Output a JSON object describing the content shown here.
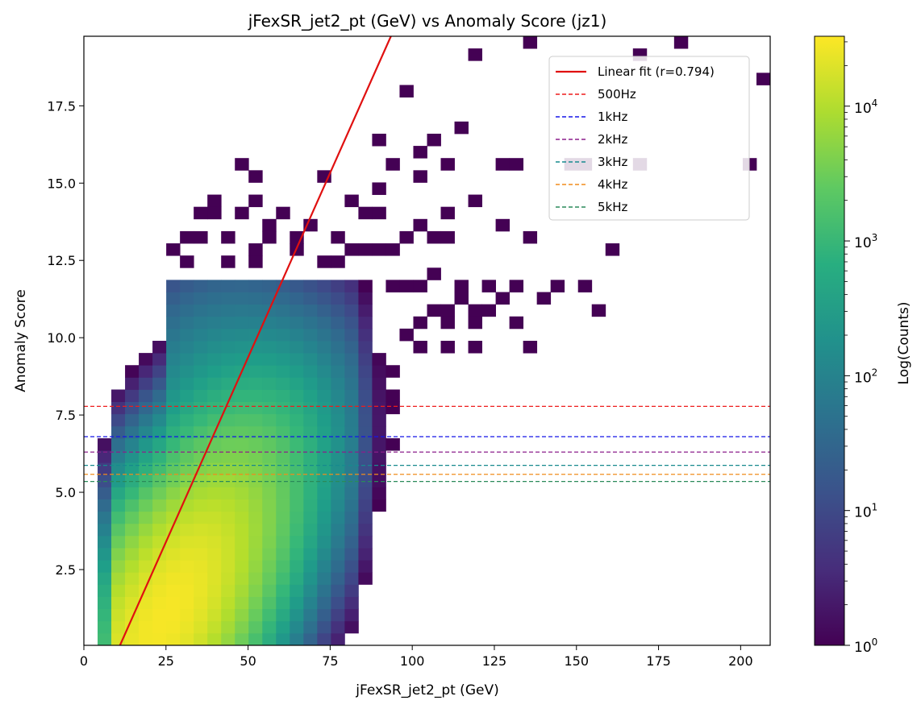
{
  "chart_data": {
    "type": "heatmap",
    "title": "jFexSR_jet2_pt (GeV) vs Anomaly Score (jz1)",
    "xlabel": "jFexSR_jet2_pt (GeV)",
    "ylabel": "Anomaly Score",
    "xlim": [
      0,
      209
    ],
    "ylim": [
      0.05,
      19.75
    ],
    "x_ticks": [
      0,
      25,
      50,
      75,
      100,
      125,
      150,
      175,
      200
    ],
    "x_tick_labels": [
      "0",
      "25",
      "50",
      "75",
      "100",
      "125",
      "150",
      "175",
      "200"
    ],
    "y_ticks": [
      2.5,
      5.0,
      7.5,
      10.0,
      12.5,
      15.0,
      17.5
    ],
    "y_tick_labels": [
      "2.5",
      "5.0",
      "7.5",
      "10.0",
      "12.5",
      "15.0",
      "17.5"
    ],
    "colorbar": {
      "label": "Log(Counts)",
      "scale": "log",
      "colormap": "viridis",
      "min": 1,
      "max": 33000,
      "ticks": [
        1,
        10,
        100,
        1000,
        10000
      ],
      "tick_labels": [
        {
          "base": "10",
          "exp": "0"
        },
        {
          "base": "10",
          "exp": "1"
        },
        {
          "base": "10",
          "exp": "2"
        },
        {
          "base": "10",
          "exp": "3"
        },
        {
          "base": "10",
          "exp": "4"
        }
      ]
    },
    "bins": {
      "x_width": 4.18,
      "y_height": 0.394,
      "model": "smooth reconstruction of the 2D count density plus sparse outlier cells; values are approximate counts read off the color scale"
    },
    "core_density": {
      "peak_counts": 30000,
      "peak_location": {
        "x": 25,
        "y": 1.0
      },
      "ridge": {
        "y_at_x_20": 0.5,
        "slope_per_gev": 0.1
      },
      "spread_y": 2.0,
      "spread_x": 16,
      "extent": "bulk spans x 5-80 GeV and scores 0-11"
    },
    "outlier_cells": [
      [
        136,
        19.5
      ],
      [
        182,
        19.5
      ],
      [
        119,
        19.1
      ],
      [
        169,
        19.1
      ],
      [
        207,
        18.4
      ],
      [
        98,
        18.0
      ],
      [
        115,
        16.8
      ],
      [
        89,
        16.4
      ],
      [
        106,
        16.4
      ],
      [
        102,
        16.0
      ],
      [
        48,
        15.6
      ],
      [
        94,
        15.6
      ],
      [
        110,
        15.6
      ],
      [
        127,
        15.6
      ],
      [
        131,
        15.6
      ],
      [
        148,
        15.6
      ],
      [
        153,
        15.6
      ],
      [
        169,
        15.6
      ],
      [
        203,
        15.6
      ],
      [
        52,
        15.2
      ],
      [
        73,
        15.2
      ],
      [
        102,
        15.2
      ],
      [
        89,
        14.8
      ],
      [
        52,
        14.4
      ],
      [
        39,
        14.4
      ],
      [
        81,
        14.4
      ],
      [
        119,
        14.4
      ],
      [
        35,
        14.0
      ],
      [
        39,
        14.0
      ],
      [
        48,
        14.0
      ],
      [
        60,
        14.0
      ],
      [
        85,
        14.0
      ],
      [
        89,
        14.0
      ],
      [
        110,
        14.0
      ],
      [
        56,
        13.6
      ],
      [
        68,
        13.6
      ],
      [
        102,
        13.6
      ],
      [
        127,
        13.6
      ],
      [
        31,
        13.2
      ],
      [
        35,
        13.2
      ],
      [
        44,
        13.2
      ],
      [
        56,
        13.2
      ],
      [
        64,
        13.2
      ],
      [
        77,
        13.2
      ],
      [
        98,
        13.2
      ],
      [
        106,
        13.2
      ],
      [
        110,
        13.2
      ],
      [
        136,
        13.2
      ],
      [
        27,
        12.9
      ],
      [
        52,
        12.9
      ],
      [
        64,
        12.9
      ],
      [
        81,
        12.9
      ],
      [
        85,
        12.9
      ],
      [
        90,
        12.9
      ],
      [
        94,
        12.9
      ],
      [
        161,
        12.9
      ],
      [
        31,
        12.5
      ],
      [
        44,
        12.5
      ],
      [
        52,
        12.5
      ],
      [
        73,
        12.5
      ],
      [
        77,
        12.5
      ],
      [
        106,
        12.1
      ],
      [
        115,
        11.7
      ],
      [
        102,
        11.7
      ],
      [
        98,
        11.7
      ],
      [
        94,
        11.7
      ],
      [
        123,
        11.7
      ],
      [
        131,
        11.7
      ],
      [
        144,
        11.7
      ],
      [
        152,
        11.7
      ],
      [
        115,
        11.3
      ],
      [
        127,
        11.3
      ],
      [
        140,
        11.3
      ],
      [
        106,
        10.9
      ],
      [
        110,
        10.9
      ],
      [
        119,
        10.9
      ],
      [
        123,
        10.9
      ],
      [
        158,
        10.9
      ],
      [
        102,
        10.6
      ],
      [
        110,
        10.6
      ],
      [
        119,
        10.6
      ],
      [
        131,
        10.6
      ],
      [
        98,
        10.2
      ],
      [
        102,
        9.8
      ],
      [
        110,
        9.8
      ],
      [
        119,
        9.8
      ],
      [
        136,
        9.8
      ],
      [
        90,
        9.0
      ],
      [
        94,
        9.0
      ],
      [
        90,
        8.2
      ],
      [
        94,
        8.2
      ],
      [
        94,
        7.8
      ],
      [
        94,
        6.6
      ],
      [
        90,
        6.2
      ],
      [
        85,
        6.2
      ],
      [
        81,
        5.0
      ],
      [
        73,
        5.0
      ],
      [
        77,
        4.6
      ],
      [
        77,
        3.0
      ],
      [
        64,
        3.0
      ],
      [
        68,
        3.0
      ],
      [
        73,
        3.0
      ],
      [
        77,
        2.2
      ],
      [
        60,
        1.4
      ],
      [
        60,
        1.0
      ],
      [
        56,
        0.6
      ],
      [
        60,
        0.6
      ],
      [
        48,
        0.6
      ],
      [
        35,
        0.2
      ],
      [
        31,
        0.2
      ],
      [
        27,
        0.2
      ],
      [
        23,
        0.2
      ]
    ],
    "trend_line": {
      "name": "Linear fit (r=0.794)",
      "color": "#e01010",
      "points": [
        [
          11,
          0.05
        ],
        [
          93.5,
          19.75
        ]
      ]
    },
    "threshold_lines": [
      {
        "name": "500Hz",
        "y": 7.78,
        "color": "#ee1c1c"
      },
      {
        "name": "1kHz",
        "y": 6.8,
        "color": "#1515e8"
      },
      {
        "name": "2kHz",
        "y": 6.3,
        "color": "#8b1e8b"
      },
      {
        "name": "3kHz",
        "y": 5.87,
        "color": "#178a8e"
      },
      {
        "name": "4kHz",
        "y": 5.58,
        "color": "#f08c1c"
      },
      {
        "name": "5kHz",
        "y": 5.35,
        "color": "#2a8a5a"
      }
    ],
    "legend": {
      "position": "upper right"
    }
  }
}
